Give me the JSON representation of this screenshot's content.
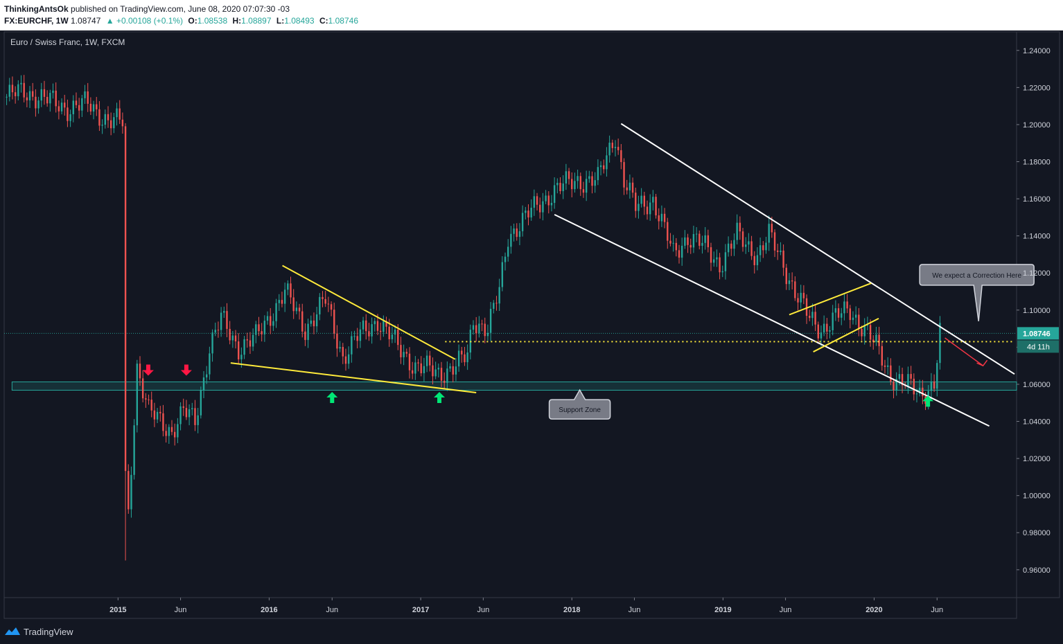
{
  "header": {
    "author": "ThinkingAntsOk",
    "published_text": "published on TradingView.com, June 08, 2020 07:07:30 -03",
    "symbol": "FX:EURCHF, 1W",
    "last": "1.08747",
    "change": "+0.00108 (+0.1%)",
    "o_label": "O:",
    "o_value": "1.08538",
    "h_label": "H:",
    "h_value": "1.08897",
    "l_label": "L:",
    "l_value": "1.08493",
    "c_label": "C:",
    "c_value": "1.08746"
  },
  "footer": {
    "brand": "TradingView"
  },
  "colors": {
    "background": "#131722",
    "up": "#26a69a",
    "down": "#ef5350",
    "trendline_white": "#ffffff",
    "trendline_yellow": "#ffeb3b",
    "support_zone": "#26a69a",
    "arrow_up": "#00e676",
    "arrow_down": "#ff1744"
  },
  "chart_data": {
    "type": "candlestick",
    "title": "Euro / Swiss Franc, 1W, FXCM",
    "ylim": [
      0.945,
      1.25
    ],
    "xlim": [
      "2014-04-01",
      "2020-12-10"
    ],
    "yticks": [
      "1.24000",
      "1.22000",
      "1.20000",
      "1.18000",
      "1.16000",
      "1.14000",
      "1.12000",
      "1.10000",
      "1.08000",
      "1.06000",
      "1.04000",
      "1.02000",
      "1.00000",
      "0.98000",
      "0.96000"
    ],
    "xticks": [
      {
        "label": "2015",
        "date": "2015-01-01",
        "bold": true
      },
      {
        "label": "Jun",
        "date": "2015-06-01",
        "bold": false
      },
      {
        "label": "2016",
        "date": "2016-01-01",
        "bold": true
      },
      {
        "label": "Jun",
        "date": "2016-06-01",
        "bold": false
      },
      {
        "label": "2017",
        "date": "2017-01-01",
        "bold": true
      },
      {
        "label": "Jun",
        "date": "2017-06-01",
        "bold": false
      },
      {
        "label": "2018",
        "date": "2018-01-01",
        "bold": true
      },
      {
        "label": "Jun",
        "date": "2018-06-01",
        "bold": false
      },
      {
        "label": "2019",
        "date": "2019-01-01",
        "bold": true
      },
      {
        "label": "Jun",
        "date": "2019-06-01",
        "bold": false
      },
      {
        "label": "2020",
        "date": "2020-01-01",
        "bold": true
      },
      {
        "label": "Jun",
        "date": "2020-06-01",
        "bold": false
      }
    ],
    "price_label": "1.08746",
    "price_level": 1.08746,
    "countdown_label": "4d 11h",
    "price_path": [
      [
        "2014-04-07",
        1.215
      ],
      [
        "2014-05-20",
        1.218
      ],
      [
        "2014-07-15",
        1.213
      ],
      [
        "2014-09-01",
        1.209
      ],
      [
        "2014-10-20",
        1.211
      ],
      [
        "2014-12-10",
        1.202
      ],
      [
        "2015-01-12",
        1.201
      ],
      [
        "2015-01-19",
        1.01
      ],
      [
        "2015-01-26",
        0.99
      ],
      [
        "2015-02-16",
        1.07
      ],
      [
        "2015-03-16",
        1.045
      ],
      [
        "2015-04-13",
        1.04
      ],
      [
        "2015-05-11",
        1.035
      ],
      [
        "2015-06-08",
        1.045
      ],
      [
        "2015-07-06",
        1.04
      ],
      [
        "2015-08-10",
        1.08
      ],
      [
        "2015-09-07",
        1.095
      ],
      [
        "2015-10-19",
        1.08
      ],
      [
        "2015-12-01",
        1.085
      ],
      [
        "2016-02-08",
        1.11
      ],
      [
        "2016-03-28",
        1.09
      ],
      [
        "2016-05-16",
        1.105
      ],
      [
        "2016-06-27",
        1.075
      ],
      [
        "2016-08-01",
        1.085
      ],
      [
        "2016-09-19",
        1.095
      ],
      [
        "2016-11-07",
        1.08
      ],
      [
        "2016-12-19",
        1.07
      ],
      [
        "2017-02-13",
        1.066
      ],
      [
        "2017-03-27",
        1.07
      ],
      [
        "2017-04-24",
        1.075
      ],
      [
        "2017-05-08",
        1.095
      ],
      [
        "2017-06-12",
        1.09
      ],
      [
        "2017-07-10",
        1.11
      ],
      [
        "2017-07-31",
        1.14
      ],
      [
        "2017-09-11",
        1.15
      ],
      [
        "2017-11-20",
        1.165
      ],
      [
        "2018-01-15",
        1.17
      ],
      [
        "2018-03-05",
        1.17
      ],
      [
        "2018-04-16",
        1.195
      ],
      [
        "2018-05-07",
        1.17
      ],
      [
        "2018-06-04",
        1.155
      ],
      [
        "2018-07-16",
        1.16
      ],
      [
        "2018-09-03",
        1.13
      ],
      [
        "2018-10-08",
        1.14
      ],
      [
        "2018-11-12",
        1.135
      ],
      [
        "2018-12-24",
        1.125
      ],
      [
        "2019-02-04",
        1.14
      ],
      [
        "2019-03-25",
        1.13
      ],
      [
        "2019-04-22",
        1.14
      ],
      [
        "2019-05-27",
        1.125
      ],
      [
        "2019-06-24",
        1.11
      ],
      [
        "2019-07-29",
        1.095
      ],
      [
        "2019-08-26",
        1.09
      ],
      [
        "2019-09-23",
        1.095
      ],
      [
        "2019-11-04",
        1.1
      ],
      [
        "2019-12-09",
        1.09
      ],
      [
        "2020-01-06",
        1.08
      ],
      [
        "2020-02-10",
        1.065
      ],
      [
        "2020-03-16",
        1.06
      ],
      [
        "2020-04-20",
        1.055
      ],
      [
        "2020-05-25",
        1.06
      ],
      [
        "2020-06-08",
        1.08746
      ]
    ],
    "annotations": {
      "callouts": [
        {
          "text": "Support Zone",
          "date": "2018-01-20",
          "price": 1.0465
        },
        {
          "text": "We expect a Correction Here",
          "date": "2020-06-20",
          "price": 1.119
        }
      ],
      "support_zone": {
        "from": "2014-04-20",
        "to": "2020-12-10",
        "low": 1.0568,
        "high": 1.0613
      },
      "dotted_level": {
        "price": 1.083,
        "from": "2017-03-01",
        "to": "2020-11-30"
      },
      "white_lines": [
        {
          "from": [
            "2018-04-30",
            1.2005
          ],
          "to": [
            "2020-12-05",
            1.0655
          ]
        },
        {
          "from": [
            "2017-11-20",
            1.1515
          ],
          "to": [
            "2020-10-05",
            1.0375
          ]
        }
      ],
      "yellow_lines": [
        {
          "from": [
            "2016-02-02",
            1.124
          ],
          "to": [
            "2017-03-25",
            1.0735
          ]
        },
        {
          "from": [
            "2015-09-30",
            1.0715
          ],
          "to": [
            "2017-05-15",
            1.0555
          ]
        },
        {
          "from": [
            "2019-06-10",
            1.0975
          ],
          "to": [
            "2019-12-25",
            1.1145
          ]
        },
        {
          "from": [
            "2019-08-07",
            1.0775
          ],
          "to": [
            "2020-01-12",
            1.0955
          ]
        }
      ],
      "arrows_up": [
        [
          "2016-06-01",
          1.0525
        ],
        [
          "2017-02-15",
          1.0525
        ],
        [
          "2020-05-10",
          1.0505
        ]
      ],
      "arrows_down": [
        [
          "2015-03-15",
          1.068
        ],
        [
          "2015-06-15",
          1.068
        ]
      ],
      "red_arrow": {
        "from": [
          "2020-06-20",
          1.085
        ],
        "to": [
          "2020-09-20",
          1.07
        ]
      }
    }
  }
}
